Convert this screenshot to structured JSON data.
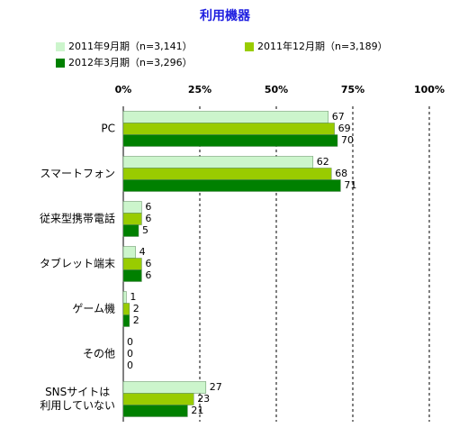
{
  "chart_data": {
    "type": "hbar",
    "title": "利用機器",
    "categories": [
      "PC",
      "スマートフォン",
      "従来型携帯電話",
      "タブレット端末",
      "ゲーム機",
      "その他",
      "SNSサイトは\n利用していない"
    ],
    "series": [
      {
        "name": "2011年9月期（n=3,141）",
        "color": "#ccf5cc",
        "values": [
          67,
          62,
          6,
          4,
          1,
          0,
          27
        ]
      },
      {
        "name": "2011年12月期（n=3,189）",
        "color": "#99cc00",
        "values": [
          69,
          68,
          6,
          6,
          2,
          0,
          23
        ]
      },
      {
        "name": "2012年3月期（n=3,296）",
        "color": "#008000",
        "values": [
          70,
          71,
          5,
          6,
          2,
          0,
          21
        ]
      }
    ],
    "xlim": [
      0,
      100
    ],
    "xticks": [
      {
        "value": 0,
        "label": "0%"
      },
      {
        "value": 25,
        "label": "25%"
      },
      {
        "value": 50,
        "label": "50%"
      },
      {
        "value": 75,
        "label": "75%"
      },
      {
        "value": 100,
        "label": "100%"
      }
    ],
    "grid": true
  }
}
